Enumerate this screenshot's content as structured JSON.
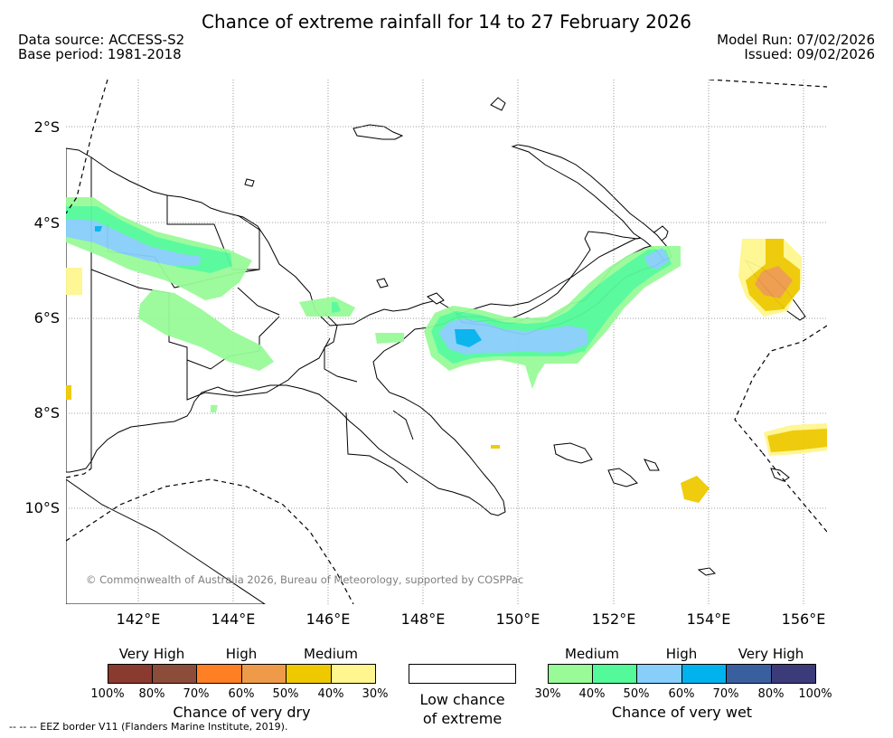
{
  "title": "Chance of extreme rainfall for 14 to 27 February 2026",
  "data_source": "Data source: ACCESS-S2",
  "base_period": "Base period: 1981-2018",
  "model_run": "Model Run: 07/02/2026",
  "issued": "Issued: 09/02/2026",
  "map": {
    "lon_range": [
      140.5,
      156.5
    ],
    "lat_range": [
      -12.0,
      -1.0
    ],
    "lat_labels": [
      "2°S",
      "4°S",
      "6°S",
      "8°S",
      "10°S"
    ],
    "lat_values": [
      -2,
      -4,
      -6,
      -8,
      -10
    ],
    "lon_labels": [
      "142°E",
      "144°E",
      "146°E",
      "148°E",
      "150°E",
      "152°E",
      "154°E",
      "156°E"
    ],
    "lon_values": [
      142,
      144,
      146,
      148,
      150,
      152,
      154,
      156
    ],
    "gridlines": true,
    "colors": {
      "land_fill": "#ffffff",
      "coastline": "#000000",
      "eez_border": "#000000",
      "wet_30_40": "#98fb98",
      "wet_40_50": "#54fa9a",
      "wet_50_60": "#87cefa",
      "wet_60_70": "#00b2ee",
      "dry_30_40": "#fff68f",
      "dry_40_50": "#eec900",
      "dry_50_60": "#ee9a49"
    }
  },
  "copyright": "© Commonwealth of Australia 2026, Bureau of Meteorology, supported by COSPPac",
  "legend": {
    "dry": {
      "categories": [
        "Very High",
        "High",
        "Medium"
      ],
      "colors": [
        "#8b3a2f",
        "#8b4c39",
        "#ff7f24",
        "#ee9a49",
        "#eec900",
        "#fff68f"
      ],
      "ticks": [
        "100%",
        "80%",
        "70%",
        "60%",
        "50%",
        "40%",
        "30%"
      ],
      "caption": "Chance of very dry"
    },
    "low": {
      "caption_line1": "Low chance",
      "caption_line2": "of extreme"
    },
    "wet": {
      "categories": [
        "Medium",
        "High",
        "Very High"
      ],
      "colors": [
        "#98fb98",
        "#54fa9a",
        "#87cefa",
        "#00b2ee",
        "#3a5f9f",
        "#3c3b7a"
      ],
      "ticks": [
        "30%",
        "40%",
        "50%",
        "60%",
        "70%",
        "80%",
        "100%"
      ],
      "caption": "Chance of very wet"
    }
  },
  "eez_note": "-- -- -- EEZ border V11 (Flanders Marine Institute, 2019)."
}
